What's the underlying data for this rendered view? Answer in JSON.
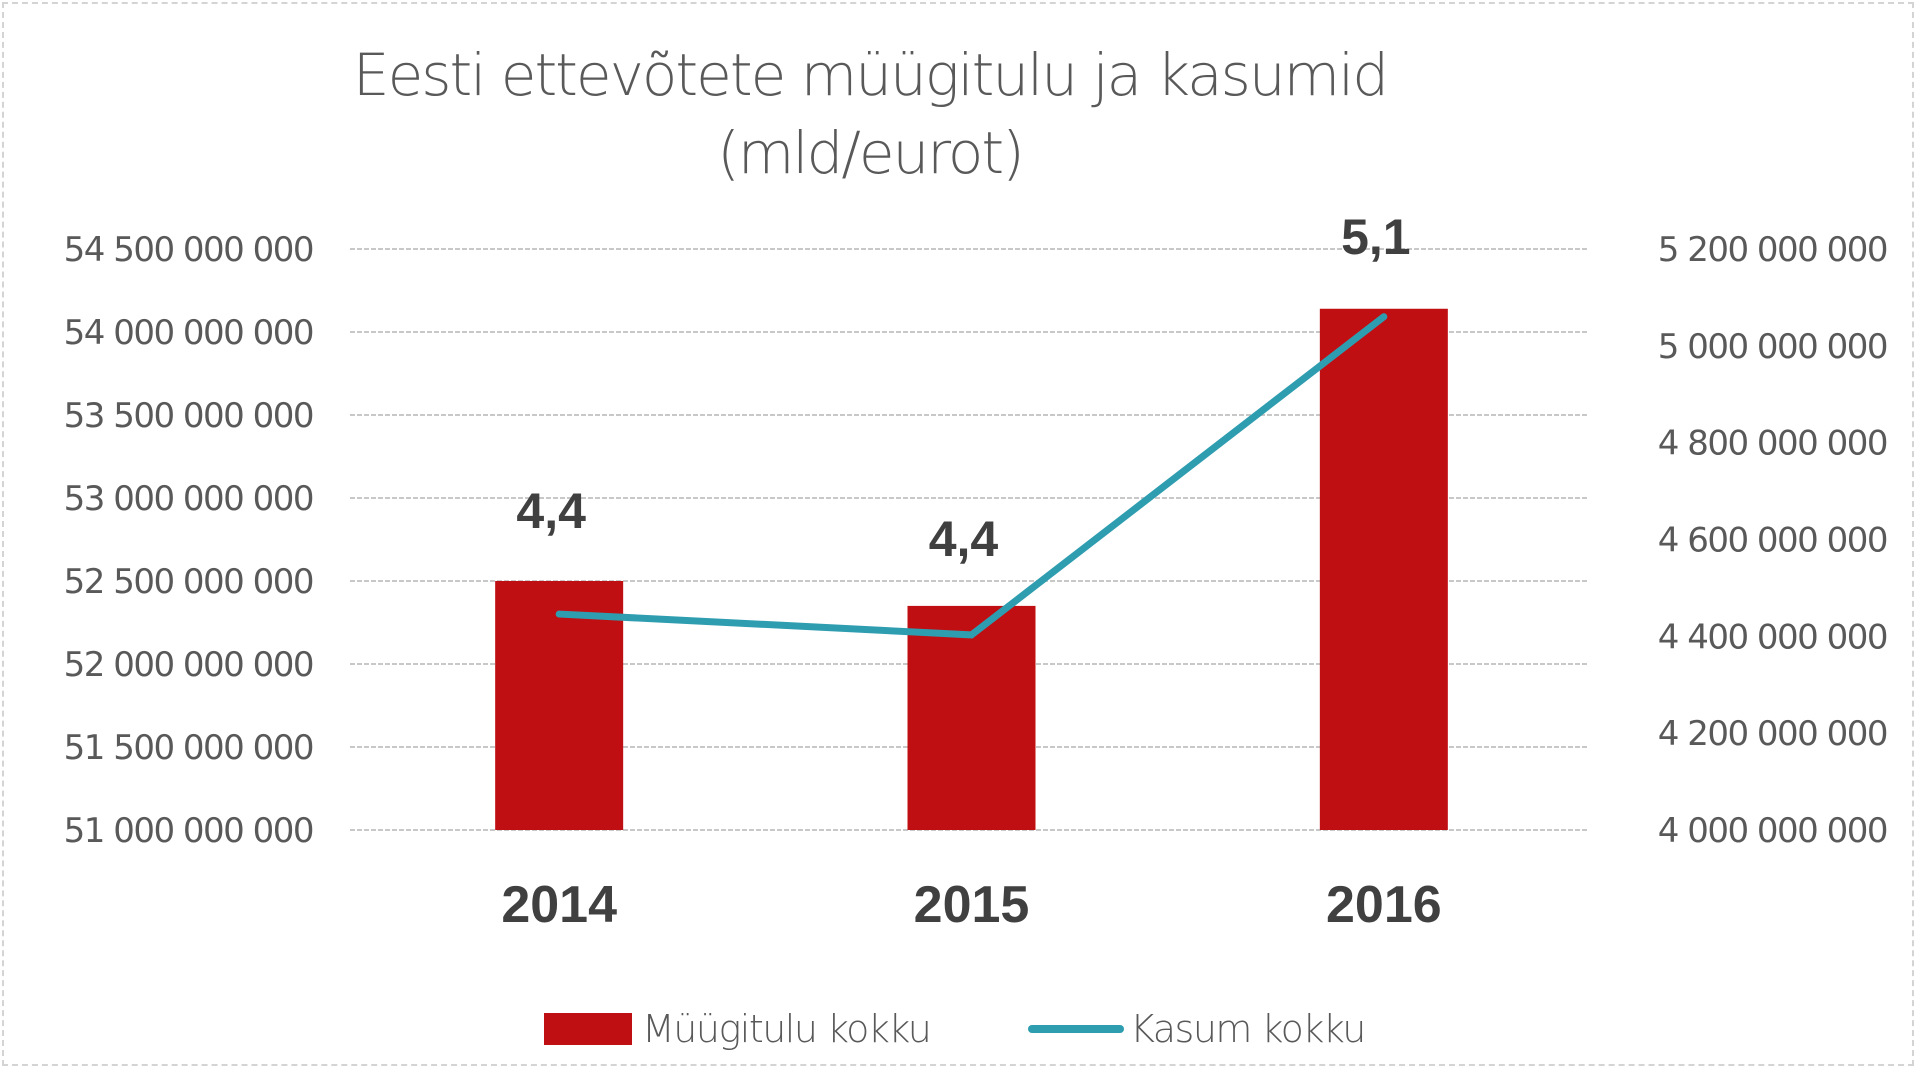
{
  "chart_data": {
    "type": "bar+line",
    "title": "Eesti ettevõtete müügitulu ja kasumid (mld/eurot)",
    "title_lines": [
      "Eesti ettevõtete müügitulu ja kasumid",
      "(mld/eurot)"
    ],
    "categories": [
      "2014",
      "2015",
      "2016"
    ],
    "series": [
      {
        "name": "Müügitulu kokku",
        "type": "bar",
        "axis": "left",
        "color": "#c00f12",
        "values": [
          52500000000,
          52350000000,
          54140000000
        ]
      },
      {
        "name": "Kasum kokku",
        "type": "line",
        "axis": "right",
        "color": "#2e9db0",
        "values": [
          4446000000,
          4403000000,
          5060000000
        ],
        "data_labels": [
          "4,4",
          "4,4",
          "5,1"
        ]
      }
    ],
    "left_axis": {
      "ylim": [
        51000000000,
        54500000000
      ],
      "ticks": [
        "54 500 000 000",
        "54 000 000 000",
        "53 500 000 000",
        "53 000 000 000",
        "52 500 000 000",
        "52 000 000 000",
        "51 500 000 000",
        "51 000 000 000"
      ]
    },
    "right_axis": {
      "ylim": [
        4000000000,
        5200000000
      ],
      "ticks": [
        "5 200 000 000",
        "5 000 000 000",
        "4 800 000 000",
        "4 600 000 000",
        "4 400 000 000",
        "4 200 000 000",
        "4 000 000 000"
      ]
    },
    "xlabel": "",
    "ylabel": "",
    "grid": true,
    "legend_position": "bottom"
  },
  "legend": {
    "bar_label": "Müügitulu kokku",
    "line_label": "Kasum kokku"
  },
  "colors": {
    "bar": "#c00f12",
    "line": "#2e9db0",
    "grid": "#c8c8c8",
    "text": "#595959"
  }
}
